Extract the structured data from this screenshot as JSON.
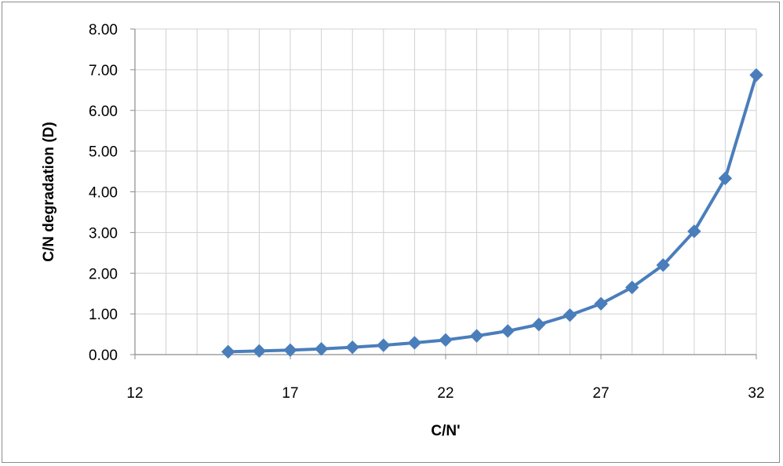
{
  "chart_data": {
    "type": "line",
    "title": "",
    "xlabel": "C/N'",
    "ylabel": "C/N degradation (D)",
    "xlim": [
      12,
      32
    ],
    "ylim": [
      0,
      8
    ],
    "x_ticks": [
      12,
      17,
      22,
      27,
      32
    ],
    "x_tick_labels": [
      "12",
      "17",
      "22",
      "27",
      "32"
    ],
    "y_ticks": [
      0,
      1,
      2,
      3,
      4,
      5,
      6,
      7,
      8
    ],
    "y_tick_labels": [
      "0.00",
      "1.00",
      "2.00",
      "3.00",
      "4.00",
      "5.00",
      "6.00",
      "7.00",
      "8.00"
    ],
    "grid": true,
    "legend": "none",
    "series": [
      {
        "color": "#4a7ebb",
        "marker": "diamond",
        "x": [
          15,
          16,
          17,
          18,
          19,
          20,
          21,
          22,
          23,
          24,
          25,
          26,
          27,
          28,
          29,
          30,
          31,
          32
        ],
        "y": [
          0.07,
          0.09,
          0.11,
          0.14,
          0.18,
          0.23,
          0.29,
          0.36,
          0.46,
          0.58,
          0.74,
          0.97,
          1.25,
          1.65,
          2.2,
          3.03,
          4.33,
          6.87
        ]
      }
    ]
  }
}
